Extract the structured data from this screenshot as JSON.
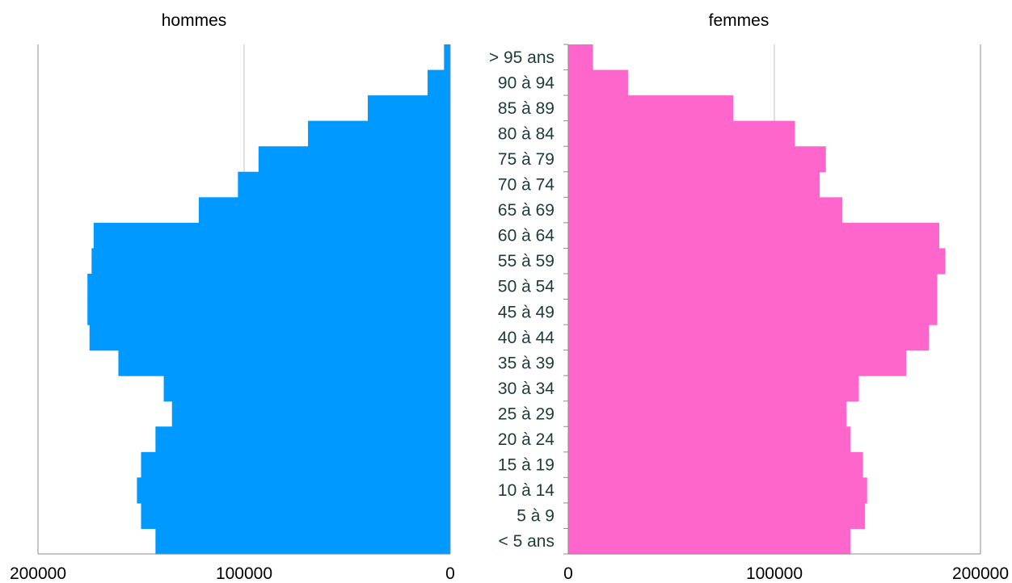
{
  "chart_data": {
    "type": "bar",
    "orientation": "horizontal",
    "layout": "population-pyramid",
    "categories": [
      "< 5 ans",
      "5 à 9",
      "10 à 14",
      "15 à 19",
      "20 à 24",
      "25 à 29",
      "30 à 34",
      "35 à 39",
      "40 à 44",
      "45 à 49",
      "50 à 54",
      "55 à 59",
      "60 à 64",
      "65 à 69",
      "70 à 74",
      "75 à 79",
      "80 à 84",
      "85 à 89",
      "90 à 94",
      "> 95 ans"
    ],
    "panels": [
      {
        "title": "hommes",
        "color": "#0099ff",
        "direction": "reversed",
        "xlim": [
          0,
          200000
        ],
        "ticks": [
          "200000",
          "100000",
          "0"
        ],
        "values": [
          143000,
          150000,
          152000,
          150000,
          143000,
          135000,
          139000,
          161000,
          175000,
          176000,
          176000,
          174000,
          173000,
          122000,
          103000,
          93000,
          69000,
          40000,
          11000,
          3000
        ]
      },
      {
        "title": "femmes",
        "color": "#ff66cc",
        "direction": "normal",
        "xlim": [
          0,
          200000
        ],
        "ticks": [
          "0",
          "100000",
          "200000"
        ],
        "values": [
          137000,
          144000,
          145000,
          143000,
          137000,
          135000,
          141000,
          164000,
          175000,
          179000,
          179000,
          183000,
          180000,
          133000,
          122000,
          125000,
          110000,
          80000,
          29000,
          12000
        ]
      }
    ]
  }
}
